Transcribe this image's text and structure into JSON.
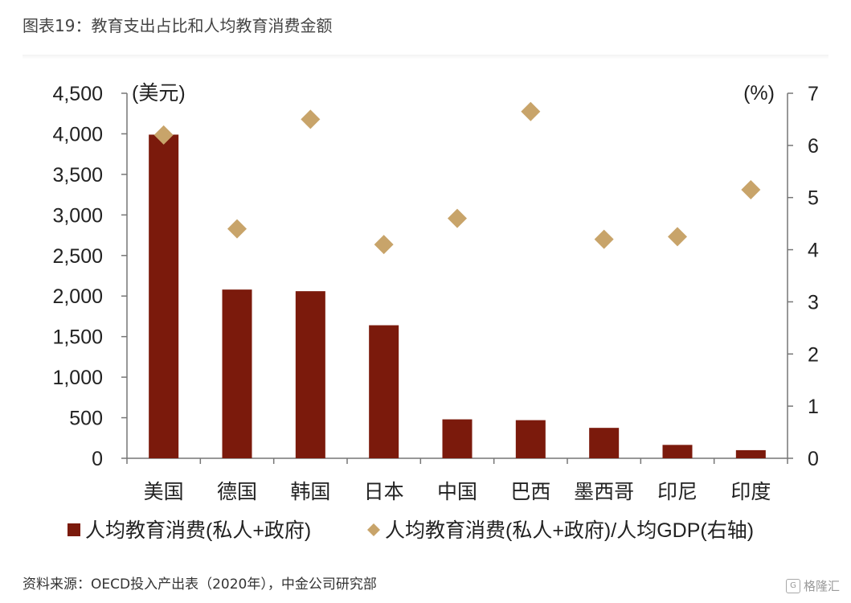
{
  "title": "图表19：教育支出占比和人均教育消费金额",
  "source": "资料来源：OECD投入产出表（2020年），中金公司研究部",
  "watermark": "格隆汇",
  "chart_data": {
    "type": "bar",
    "categories": [
      "美国",
      "德国",
      "韩国",
      "日本",
      "中国",
      "巴西",
      "墨西哥",
      "印尼",
      "印度"
    ],
    "series": [
      {
        "name": "人均教育消费(私人+政府)",
        "type": "bar",
        "axis": "left",
        "color": "#7b1a0c",
        "values": [
          3990,
          2080,
          2060,
          1640,
          480,
          470,
          375,
          165,
          100
        ]
      },
      {
        "name": "人均教育消费(私人+政府)/人均GDP(右轴)",
        "type": "scatter",
        "marker": "diamond",
        "axis": "right",
        "color": "#c8a46a",
        "values": [
          6.2,
          4.4,
          6.5,
          4.1,
          4.6,
          6.65,
          4.2,
          4.25,
          5.15
        ]
      }
    ],
    "left_axis": {
      "unit": "(美元)",
      "ylim": [
        0,
        4500
      ],
      "ticks": [
        "0",
        "500",
        "1,000",
        "1,500",
        "2,000",
        "2,500",
        "3,000",
        "3,500",
        "4,000",
        "4,500"
      ]
    },
    "right_axis": {
      "unit": "(%)",
      "ylim": [
        0,
        7
      ],
      "ticks": [
        "0",
        "1",
        "2",
        "3",
        "4",
        "5",
        "6",
        "7"
      ]
    },
    "grid": false,
    "legend": "bottom"
  }
}
